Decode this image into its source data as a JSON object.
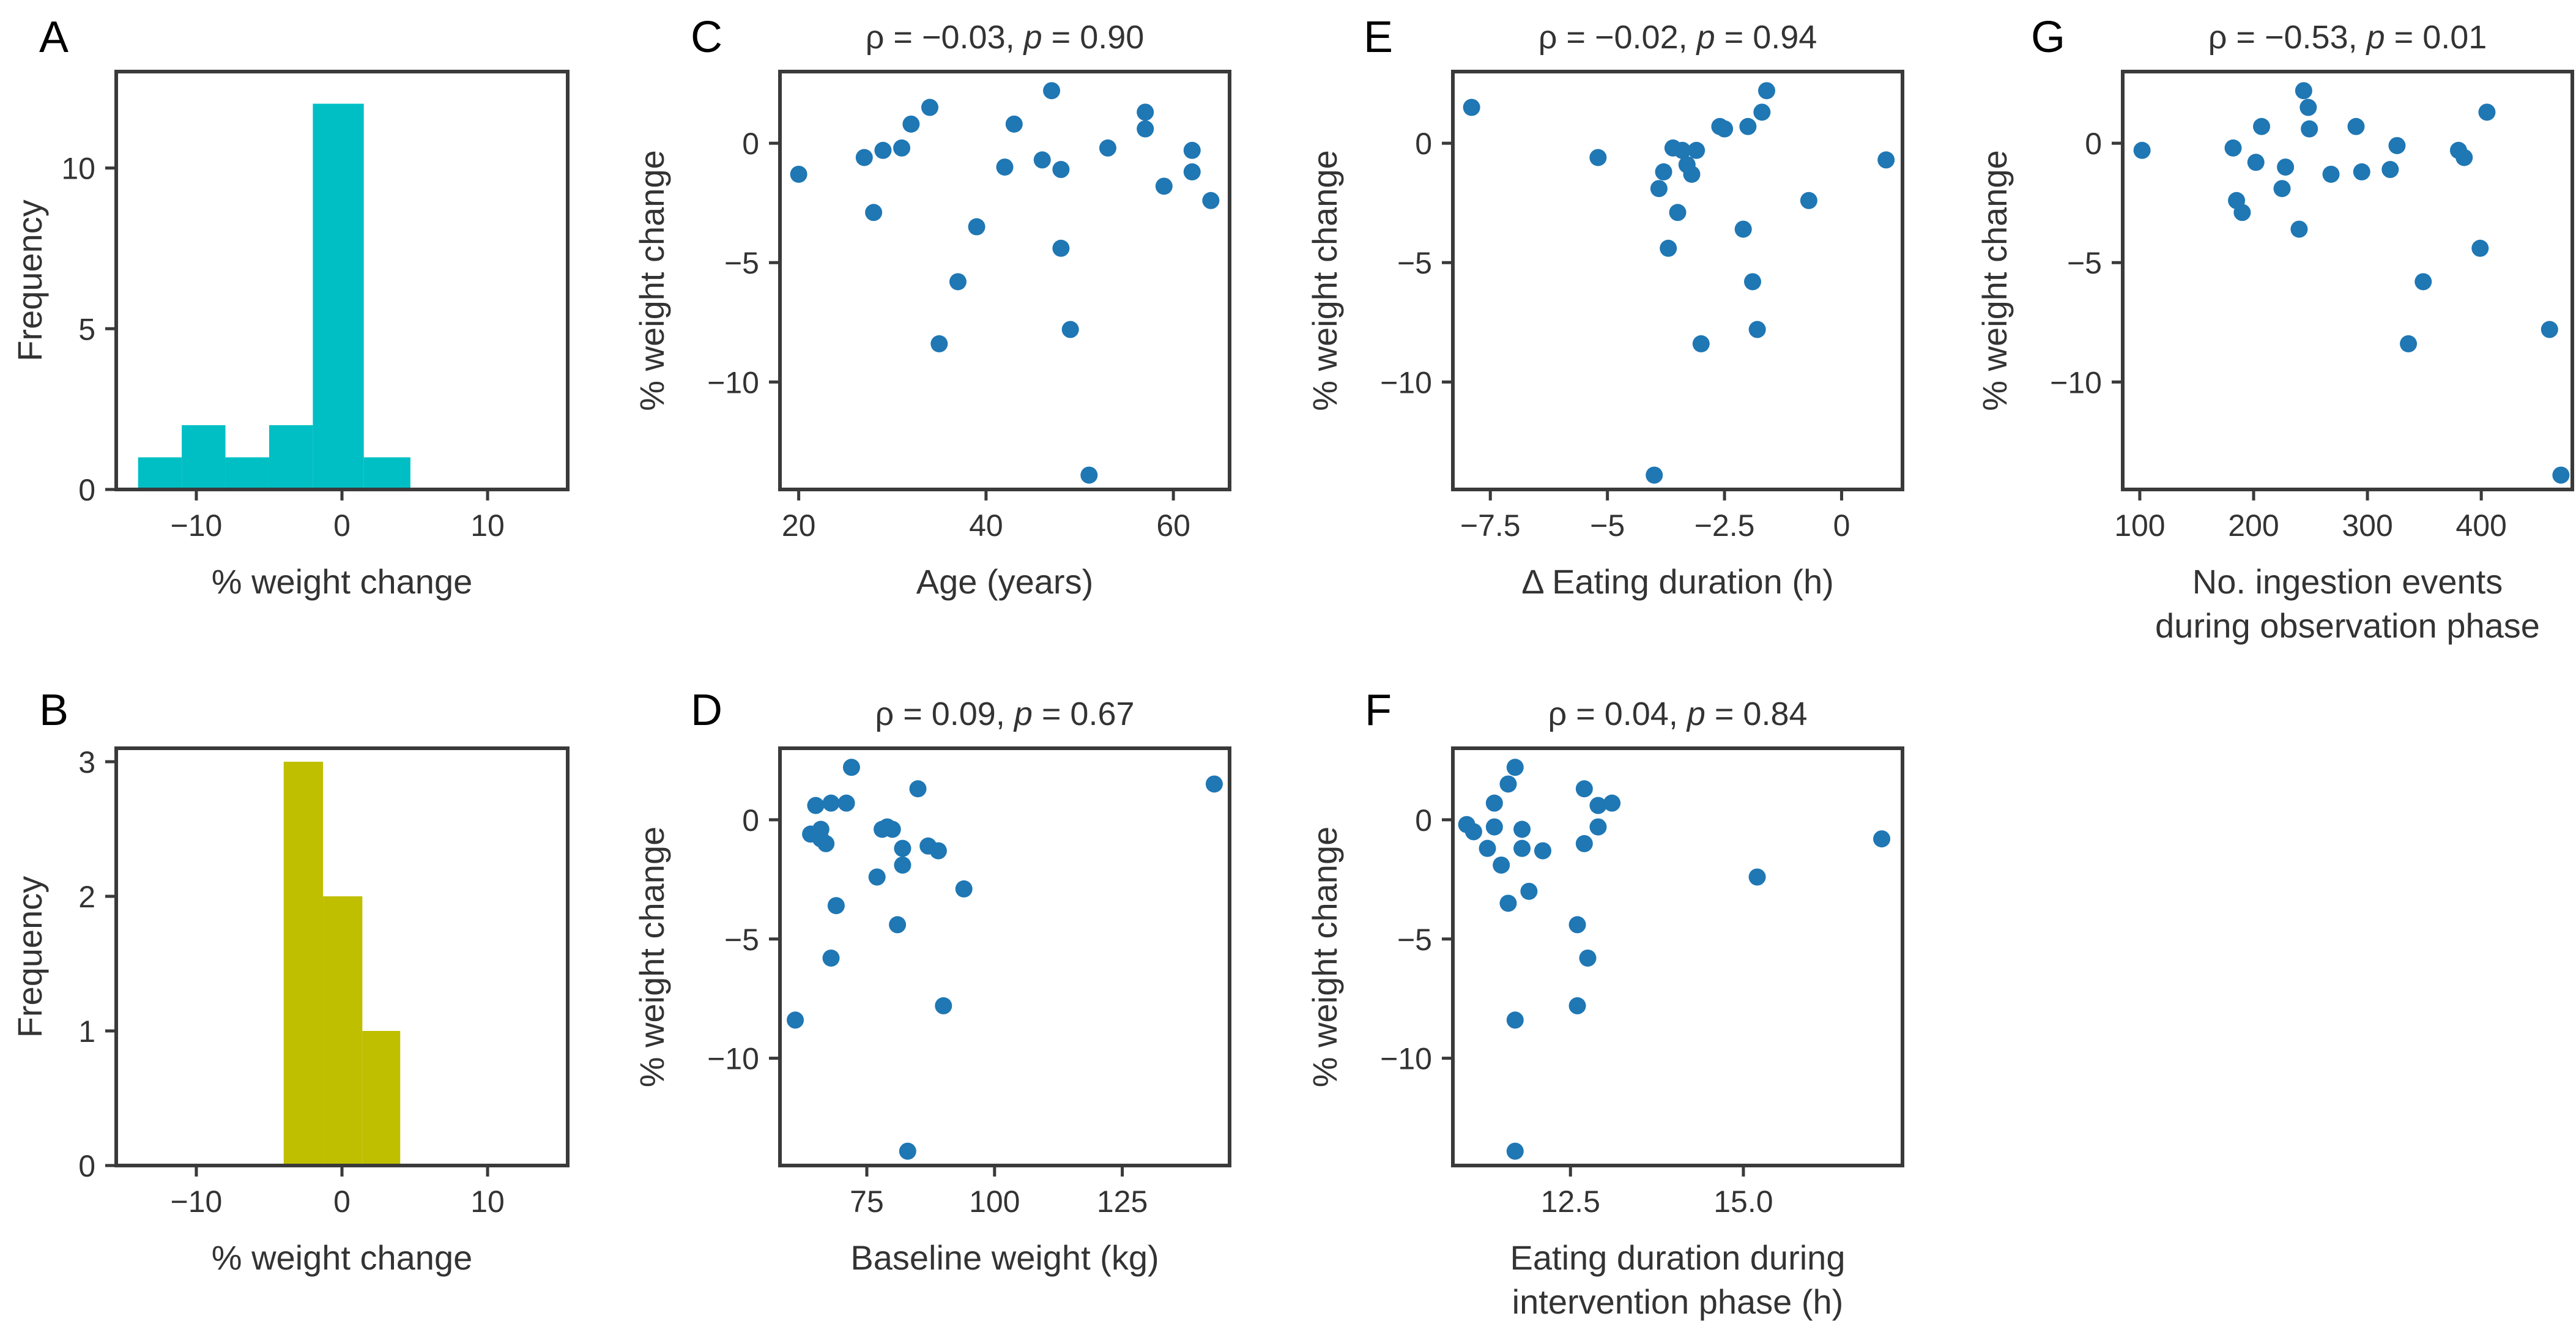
{
  "colors": {
    "hist_a": "#00BFC4",
    "hist_b": "#BFBF00",
    "scatter": "#1F77B4",
    "axis": "#3a3a3a"
  },
  "chart_data": [
    {
      "id": "A",
      "letter": "A",
      "type": "bar",
      "title": "",
      "xlabel": "% weight change",
      "ylabel": "Frequency",
      "xlim": [
        -15.5,
        15.5
      ],
      "ylim": [
        0,
        13
      ],
      "xticks": [
        -10,
        0,
        10
      ],
      "xtick_labels": [
        "−10",
        "0",
        "10"
      ],
      "yticks": [
        0,
        5,
        10
      ],
      "ytick_labels": [
        "0",
        "5",
        "10"
      ],
      "bins": [
        {
          "x0": -14.0,
          "x1": -11.0,
          "count": 1
        },
        {
          "x0": -11.0,
          "x1": -8.0,
          "count": 2
        },
        {
          "x0": -8.0,
          "x1": -5.0,
          "count": 1
        },
        {
          "x0": -5.0,
          "x1": -2.0,
          "count": 2
        },
        {
          "x0": -2.0,
          "x1": 1.5,
          "count": 12
        },
        {
          "x0": 1.5,
          "x1": 4.7,
          "count": 1
        }
      ]
    },
    {
      "id": "B",
      "letter": "B",
      "type": "bar",
      "title": "",
      "xlabel": "% weight change",
      "ylabel": "Frequency",
      "xlim": [
        -15.5,
        15.5
      ],
      "ylim": [
        0,
        3.1
      ],
      "xticks": [
        -10,
        0,
        10
      ],
      "xtick_labels": [
        "−10",
        "0",
        "10"
      ],
      "yticks": [
        0,
        1,
        2,
        3
      ],
      "ytick_labels": [
        "0",
        "1",
        "2",
        "3"
      ],
      "bins": [
        {
          "x0": -4.0,
          "x1": -1.3,
          "count": 3
        },
        {
          "x0": -1.3,
          "x1": 1.4,
          "count": 2
        },
        {
          "x0": 1.4,
          "x1": 4.0,
          "count": 1
        }
      ]
    },
    {
      "id": "C",
      "letter": "C",
      "type": "scatter",
      "title_pre": "ρ = −0.03, ",
      "title_p": "p",
      "title_post": " = 0.90",
      "xlabel": "Age (years)",
      "ylabel": "% weight change",
      "xlim": [
        18,
        66
      ],
      "ylim": [
        -14.5,
        3
      ],
      "xticks": [
        20,
        40,
        60
      ],
      "xtick_labels": [
        "20",
        "40",
        "60"
      ],
      "yticks": [
        0,
        -5,
        -10
      ],
      "ytick_labels": [
        "0",
        "−5",
        "−10"
      ],
      "points": [
        [
          20,
          -1.3
        ],
        [
          27,
          -0.6
        ],
        [
          28,
          -2.9
        ],
        [
          29,
          -0.3
        ],
        [
          31,
          -0.2
        ],
        [
          32,
          0.8
        ],
        [
          34,
          1.5
        ],
        [
          35,
          -8.4
        ],
        [
          37,
          -5.8
        ],
        [
          39,
          -3.5
        ],
        [
          42,
          -1.0
        ],
        [
          43,
          0.8
        ],
        [
          46,
          -0.7
        ],
        [
          47,
          2.2
        ],
        [
          48,
          -1.1
        ],
        [
          48,
          -4.4
        ],
        [
          49,
          -7.8
        ],
        [
          51,
          -13.9
        ],
        [
          53,
          -0.2
        ],
        [
          57,
          1.3
        ],
        [
          57,
          0.6
        ],
        [
          59,
          -1.8
        ],
        [
          62,
          -0.3
        ],
        [
          62,
          -1.2
        ],
        [
          64,
          -2.4
        ]
      ]
    },
    {
      "id": "D",
      "letter": "D",
      "type": "scatter",
      "title_pre": "ρ = 0.09, ",
      "title_p": "p",
      "title_post": " = 0.67",
      "xlabel": "Baseline weight (kg)",
      "ylabel": "% weight change",
      "xlim": [
        58,
        146
      ],
      "ylim": [
        -14.5,
        3
      ],
      "xticks": [
        75,
        100,
        125
      ],
      "xtick_labels": [
        "75",
        "100",
        "125"
      ],
      "yticks": [
        0,
        -5,
        -10
      ],
      "ytick_labels": [
        "0",
        "−5",
        "−10"
      ],
      "points": [
        [
          61,
          -8.4
        ],
        [
          64,
          -0.6
        ],
        [
          65,
          0.6
        ],
        [
          66,
          -0.4
        ],
        [
          66,
          -0.8
        ],
        [
          67,
          -1.0
        ],
        [
          68,
          0.7
        ],
        [
          68,
          -5.8
        ],
        [
          69,
          -3.6
        ],
        [
          71,
          0.7
        ],
        [
          72,
          2.2
        ],
        [
          77,
          -2.4
        ],
        [
          78,
          -0.4
        ],
        [
          79,
          -0.3
        ],
        [
          80,
          -0.4
        ],
        [
          81,
          -4.4
        ],
        [
          82,
          -1.2
        ],
        [
          82,
          -1.9
        ],
        [
          83,
          -13.9
        ],
        [
          85,
          1.3
        ],
        [
          87,
          -1.1
        ],
        [
          89,
          -1.3
        ],
        [
          90,
          -7.8
        ],
        [
          94,
          -2.9
        ],
        [
          143,
          1.5
        ]
      ]
    },
    {
      "id": "E",
      "letter": "E",
      "type": "scatter",
      "title_pre": "ρ = −0.02, ",
      "title_p": "p",
      "title_post": " = 0.94",
      "xlabel": "Δ Eating duration (h)",
      "ylabel": "% weight change",
      "xlim": [
        -8.3,
        1.3
      ],
      "ylim": [
        -14.5,
        3
      ],
      "xticks": [
        -7.5,
        -5,
        -2.5,
        0
      ],
      "xtick_labels": [
        "−7.5",
        "−5",
        "−2.5",
        "0"
      ],
      "yticks": [
        0,
        -5,
        -10
      ],
      "ytick_labels": [
        "0",
        "−5",
        "−10"
      ],
      "points": [
        [
          -7.9,
          1.5
        ],
        [
          -5.2,
          -0.6
        ],
        [
          -4.0,
          -13.9
        ],
        [
          -3.9,
          -1.9
        ],
        [
          -3.8,
          -1.2
        ],
        [
          -3.7,
          -4.4
        ],
        [
          -3.6,
          -0.2
        ],
        [
          -3.5,
          -2.9
        ],
        [
          -3.4,
          -0.3
        ],
        [
          -3.3,
          -0.9
        ],
        [
          -3.2,
          -1.3
        ],
        [
          -3.1,
          -0.3
        ],
        [
          -3.0,
          -8.4
        ],
        [
          -2.6,
          0.7
        ],
        [
          -2.5,
          0.6
        ],
        [
          -2.1,
          -3.6
        ],
        [
          -2.0,
          0.7
        ],
        [
          -1.9,
          -5.8
        ],
        [
          -1.8,
          -7.8
        ],
        [
          -1.7,
          1.3
        ],
        [
          -1.6,
          2.2
        ],
        [
          -0.7,
          -2.4
        ],
        [
          0.95,
          -0.7
        ]
      ]
    },
    {
      "id": "F",
      "letter": "F",
      "type": "scatter",
      "title_pre": "ρ = 0.04, ",
      "title_p": "p",
      "title_post": " = 0.84",
      "xlabel": "Eating duration during",
      "xlabel2": "intervention phase (h)",
      "ylabel": "% weight change",
      "xlim": [
        10.8,
        17.3
      ],
      "ylim": [
        -14.5,
        3
      ],
      "xticks": [
        12.5,
        15.0
      ],
      "xtick_labels": [
        "12.5",
        "15.0"
      ],
      "yticks": [
        0,
        -5,
        -10
      ],
      "ytick_labels": [
        "0",
        "−5",
        "−10"
      ],
      "points": [
        [
          11.0,
          -0.2
        ],
        [
          11.1,
          -0.5
        ],
        [
          11.3,
          -1.2
        ],
        [
          11.4,
          0.7
        ],
        [
          11.4,
          -0.3
        ],
        [
          11.5,
          -1.9
        ],
        [
          11.6,
          1.5
        ],
        [
          11.6,
          -3.5
        ],
        [
          11.7,
          2.2
        ],
        [
          11.7,
          -8.4
        ],
        [
          11.7,
          -13.9
        ],
        [
          11.8,
          -1.2
        ],
        [
          11.8,
          -0.4
        ],
        [
          11.9,
          -3.0
        ],
        [
          12.1,
          -1.3
        ],
        [
          12.6,
          -4.4
        ],
        [
          12.6,
          -7.8
        ],
        [
          12.7,
          1.3
        ],
        [
          12.7,
          -1.0
        ],
        [
          12.75,
          -5.8
        ],
        [
          12.9,
          0.6
        ],
        [
          12.9,
          -0.3
        ],
        [
          13.1,
          0.7
        ],
        [
          15.2,
          -2.4
        ],
        [
          17.0,
          -0.8
        ]
      ]
    },
    {
      "id": "G",
      "letter": "G",
      "type": "scatter",
      "title_pre": "ρ = −0.53, ",
      "title_p": "p",
      "title_post": " = 0.01",
      "xlabel": "No. ingestion events",
      "xlabel2": "during observation phase",
      "ylabel": "% weight change",
      "xlim": [
        85,
        480
      ],
      "ylim": [
        -14.5,
        3
      ],
      "xticks": [
        100,
        200,
        300,
        400
      ],
      "xtick_labels": [
        "100",
        "200",
        "300",
        "400"
      ],
      "yticks": [
        0,
        -5,
        -10
      ],
      "ytick_labels": [
        "0",
        "−5",
        "−10"
      ],
      "points": [
        [
          102,
          -0.3
        ],
        [
          182,
          -0.2
        ],
        [
          185,
          -2.4
        ],
        [
          190,
          -2.9
        ],
        [
          202,
          -0.8
        ],
        [
          207,
          0.7
        ],
        [
          225,
          -1.9
        ],
        [
          228,
          -1.0
        ],
        [
          240,
          -3.6
        ],
        [
          244,
          2.2
        ],
        [
          248,
          1.5
        ],
        [
          249,
          0.6
        ],
        [
          268,
          -1.3
        ],
        [
          290,
          0.7
        ],
        [
          295,
          -1.2
        ],
        [
          320,
          -1.1
        ],
        [
          326,
          -0.1
        ],
        [
          336,
          -8.4
        ],
        [
          349,
          -5.8
        ],
        [
          380,
          -0.3
        ],
        [
          385,
          -0.6
        ],
        [
          399,
          -4.4
        ],
        [
          405,
          1.3
        ],
        [
          460,
          -7.8
        ],
        [
          470,
          -13.9
        ]
      ]
    }
  ]
}
